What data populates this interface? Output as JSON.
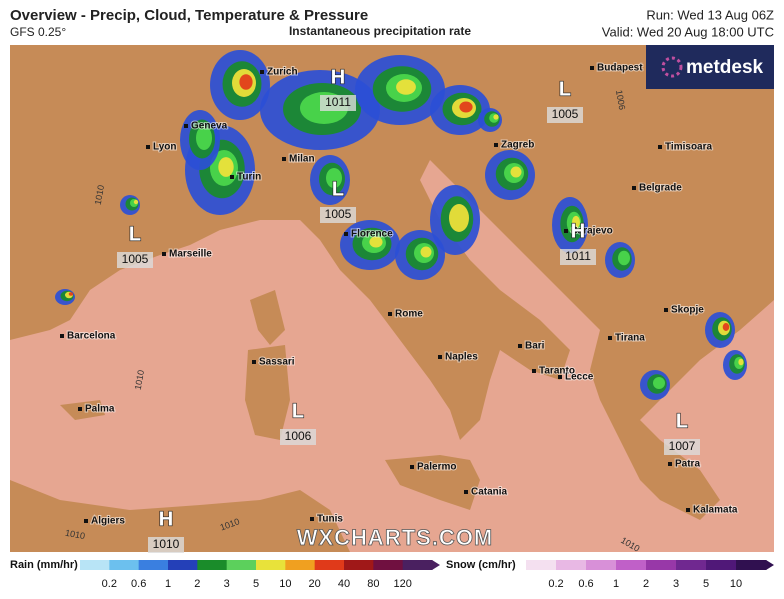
{
  "header": {
    "title": "Overview - Precip, Cloud, Temperature & Pressure",
    "model": "GFS 0.25°",
    "subtitle": "Instantaneous precipitation rate",
    "run": "Run: Wed 13 Aug 06Z",
    "valid": "Valid: Wed 20 Aug 18:00 UTC"
  },
  "logo": "metdesk",
  "watermark": "WXCHARTS.COM",
  "cities": [
    "Zurich",
    "Budapest",
    "Geneva",
    "Lyon",
    "Zagreb",
    "Timisoara",
    "Milan",
    "Turin",
    "Belgrade",
    "Florence",
    "Marseille",
    "Sarajevo",
    "Skopje",
    "Barcelona",
    "Rome",
    "Tirana",
    "Bari",
    "Naples",
    "Sassari",
    "Taranto",
    "Lecce",
    "Palma",
    "Palermo",
    "Patra",
    "Catania",
    "Kalamata",
    "Algiers",
    "Tunis"
  ],
  "pressure_systems": [
    {
      "letter": "H",
      "value": 1011
    },
    {
      "letter": "L",
      "value": 1005
    },
    {
      "letter": "L",
      "value": 1005
    },
    {
      "letter": "L",
      "value": 1005
    },
    {
      "letter": "H",
      "value": 1011
    },
    {
      "letter": "L",
      "value": 1006
    },
    {
      "letter": "L",
      "value": 1007
    },
    {
      "letter": "H",
      "value": 1010
    }
  ],
  "isobar_labels": [
    1010,
    1006,
    1010,
    1010,
    1010,
    1010
  ],
  "legend": {
    "rain": {
      "label": "Rain (mm/hr)",
      "ticks": [
        0.2,
        0.6,
        1,
        2,
        3,
        5,
        10,
        20,
        40,
        80,
        120
      ]
    },
    "snow": {
      "label": "Snow (cm/hr)",
      "ticks": [
        0.2,
        0.6,
        1,
        2,
        3,
        5,
        10
      ]
    }
  }
}
